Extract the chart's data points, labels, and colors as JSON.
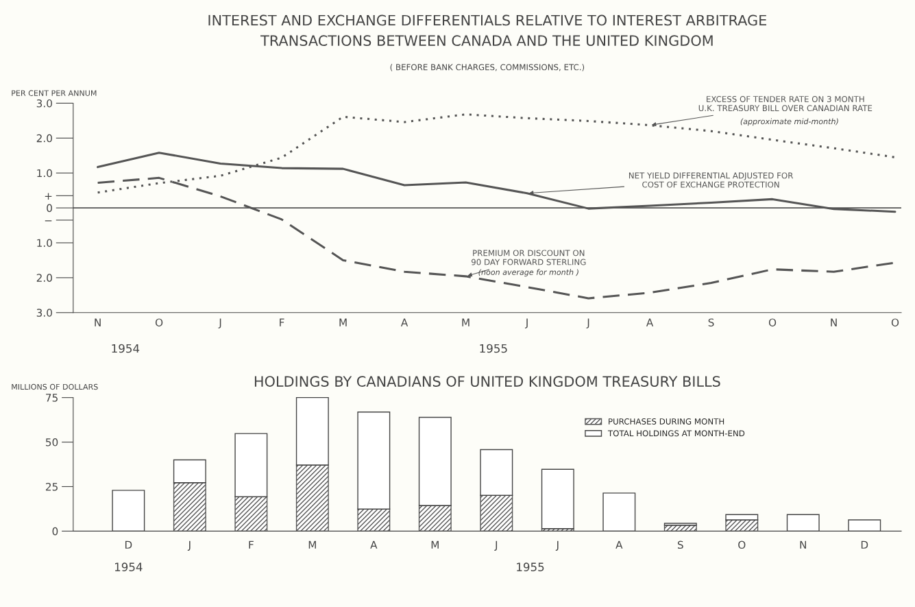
{
  "chart_data": [
    {
      "type": "line",
      "title": "INTEREST AND EXCHANGE DIFFERENTIALS RELATIVE TO INTEREST ARBITRAGE\nTRANSACTIONS BETWEEN CANADA AND THE UNITED KINGDOM",
      "subtitle": "( BEFORE BANK CHARGES, COMMISSIONS, ETC.)",
      "ylabel": "PER CENT PER ANNUM",
      "categories": [
        "N",
        "O",
        "J",
        "F",
        "M",
        "A",
        "M",
        "J",
        "J",
        "A",
        "S",
        "O",
        "N",
        "O"
      ],
      "series": [
        {
          "name": "EXCESS OF TENDER RATE ON 3 MONTH\nU.K. TREASURY BILL OVER CANADIAN RATE",
          "color": "#555555",
          "line_style": "dotted",
          "values": [
            0.44,
            0.71,
            0.92,
            1.44,
            2.61,
            2.46,
            2.68,
            2.57,
            2.49,
            2.37,
            2.2,
            1.95,
            1.71,
            1.45
          ]
        },
        {
          "name": "NET YIELD DIFFERENTIAL ADJUSTED FOR\nCOST OF EXCHANGE PROTECTION",
          "color": "#555555",
          "line_style": "solid",
          "values": [
            1.17,
            1.58,
            1.27,
            1.14,
            1.12,
            0.65,
            0.73,
            0.42,
            -0.02,
            0.06,
            0.15,
            0.25,
            -0.03,
            -0.11
          ]
        },
        {
          "name": "PREMIUM OR DISCOUNT ON\n90 DAY FORWARD STERLING",
          "color": "#555555",
          "line_style": "dashed",
          "values": [
            0.72,
            0.86,
            0.33,
            -0.33,
            -1.5,
            -1.83,
            -1.96,
            -2.27,
            -2.59,
            -2.43,
            -2.15,
            -1.76,
            -1.83,
            -1.57
          ]
        }
      ],
      "ylim": [
        -3.0,
        3.0
      ],
      "yticks": [
        {
          "value": 3.0,
          "label": "3.0"
        },
        {
          "value": 2.0,
          "label": "2.0"
        },
        {
          "value": 1.0,
          "label": "1.0"
        },
        {
          "value": 0.35,
          "label": "+"
        },
        0,
        {
          "value": -0.35,
          "label": "−"
        },
        {
          "value": -1.0,
          "label": "1.0"
        },
        {
          "value": -2.0,
          "label": "2.0"
        },
        {
          "value": -3.0,
          "label": "3.0"
        }
      ],
      "ref_lines": [
        {
          "axis": "y",
          "value": 0,
          "color": "#555555"
        }
      ],
      "annotations": [
        "(approximate mid-month)",
        "(noon average for month )",
        "1954",
        "1955"
      ],
      "grid": false,
      "legend": false
    },
    {
      "type": "bar",
      "title": "HOLDINGS BY CANADIANS OF UNITED KINGDOM TREASURY BILLS",
      "ylabel": "MILLIONS OF DOLLARS",
      "categories": [
        "D",
        "J",
        "F",
        "M",
        "A",
        "M",
        "J",
        "J",
        "A",
        "S",
        "O",
        "N",
        "D"
      ],
      "stacked": true,
      "series": [
        {
          "name": "PURCHASES DURING MONTH",
          "color": "#555555",
          "values": [
            0,
            27.2,
            19.3,
            37.1,
            12.4,
            14.4,
            20.1,
            1.4,
            0,
            3.3,
            6.3,
            0,
            0
          ]
        },
        {
          "name": "TOTAL HOLDINGS AT MONTH-END",
          "color": "#ffffff",
          "values": [
            22.9,
            12.8,
            35.5,
            37.9,
            54.5,
            49.5,
            25.7,
            33.3,
            21.4,
            1.1,
            3.0,
            9.3,
            6.3
          ]
        }
      ],
      "ylim": [
        0,
        75
      ],
      "yticks": [
        0,
        25,
        50,
        75
      ],
      "annotations": [
        "1954",
        "1955"
      ],
      "grid": false,
      "legend": "top right"
    }
  ]
}
